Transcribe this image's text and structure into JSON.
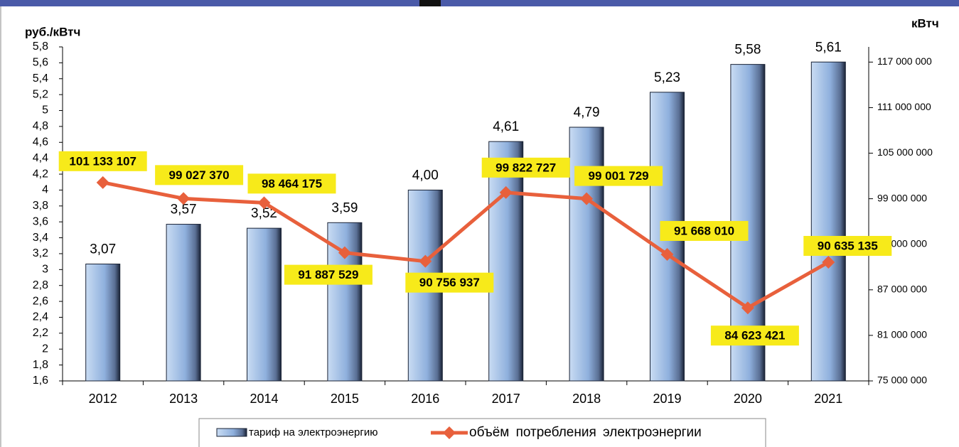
{
  "chart_data": {
    "type": "bar-line",
    "y_label": "руб./кВтч",
    "y2_label": "кВтч",
    "categories": [
      "2012",
      "2013",
      "2014",
      "2015",
      "2016",
      "2017",
      "2018",
      "2019",
      "2020",
      "2021"
    ],
    "series": [
      {
        "name": "тариф на электроэнергию",
        "type": "bar",
        "color": "#8fb0dd",
        "values": [
          3.07,
          3.57,
          3.52,
          3.59,
          4.0,
          4.61,
          4.79,
          5.23,
          5.58,
          5.61
        ],
        "value_labels": [
          "3,07",
          "3,57",
          "3,52",
          "3,59",
          "4,00",
          "4,61",
          "4,79",
          "5,23",
          "5,58",
          "5,61"
        ]
      },
      {
        "name": "объём потребления электроэнергии",
        "type": "line",
        "axis": "y2",
        "color": "#e8603c",
        "values": [
          101133107,
          99027370,
          98464175,
          91887529,
          90756937,
          99822727,
          99001729,
          91668010,
          84623421,
          90635135
        ],
        "value_labels": [
          "101 133 107",
          "99 027 370",
          "98 464 175",
          "91 887 529",
          "90 756 937",
          "99 822 727",
          "99 001 729",
          "91 668 010",
          "84 623 421",
          "90 635 135"
        ]
      }
    ],
    "ylim": [
      1.6,
      5.8
    ],
    "yticks": [
      {
        "value": 1.6,
        "label": "1,6"
      },
      {
        "value": 1.8,
        "label": "1,8"
      },
      2,
      {
        "value": 2.2,
        "label": "2,2"
      },
      {
        "value": 2.4,
        "label": "2,4"
      },
      {
        "value": 2.6,
        "label": "2,6"
      },
      {
        "value": 2.8,
        "label": "2,8"
      },
      3,
      {
        "value": 3.2,
        "label": "3,2"
      },
      {
        "value": 3.4,
        "label": "3,4"
      },
      {
        "value": 3.6,
        "label": "3,6"
      },
      {
        "value": 3.8,
        "label": "3,8"
      },
      4,
      {
        "value": 4.2,
        "label": "4,2"
      },
      {
        "value": 4.4,
        "label": "4,4"
      },
      {
        "value": 4.6,
        "label": "4,6"
      },
      {
        "value": 4.8,
        "label": "4,8"
      },
      5,
      {
        "value": 5.2,
        "label": "5,2"
      },
      {
        "value": 5.4,
        "label": "5,4"
      },
      {
        "value": 5.6,
        "label": "5,6"
      },
      {
        "value": 5.8,
        "label": "5,8"
      }
    ],
    "y2lim": [
      75000000,
      119000000
    ],
    "y2ticks": [
      {
        "value": 75000000,
        "label": "75 000 000"
      },
      {
        "value": 81000000,
        "label": "81 000 000"
      },
      {
        "value": 87000000,
        "label": "87 000 000"
      },
      {
        "value": 93000000,
        "label": "93 000 000"
      },
      {
        "value": 99000000,
        "label": "99 000 000"
      },
      {
        "value": 105000000,
        "label": "105 000 000"
      },
      {
        "value": 111000000,
        "label": "111 000 000"
      },
      {
        "value": 117000000,
        "label": "117 000 000"
      }
    ],
    "legend": "bottom"
  }
}
